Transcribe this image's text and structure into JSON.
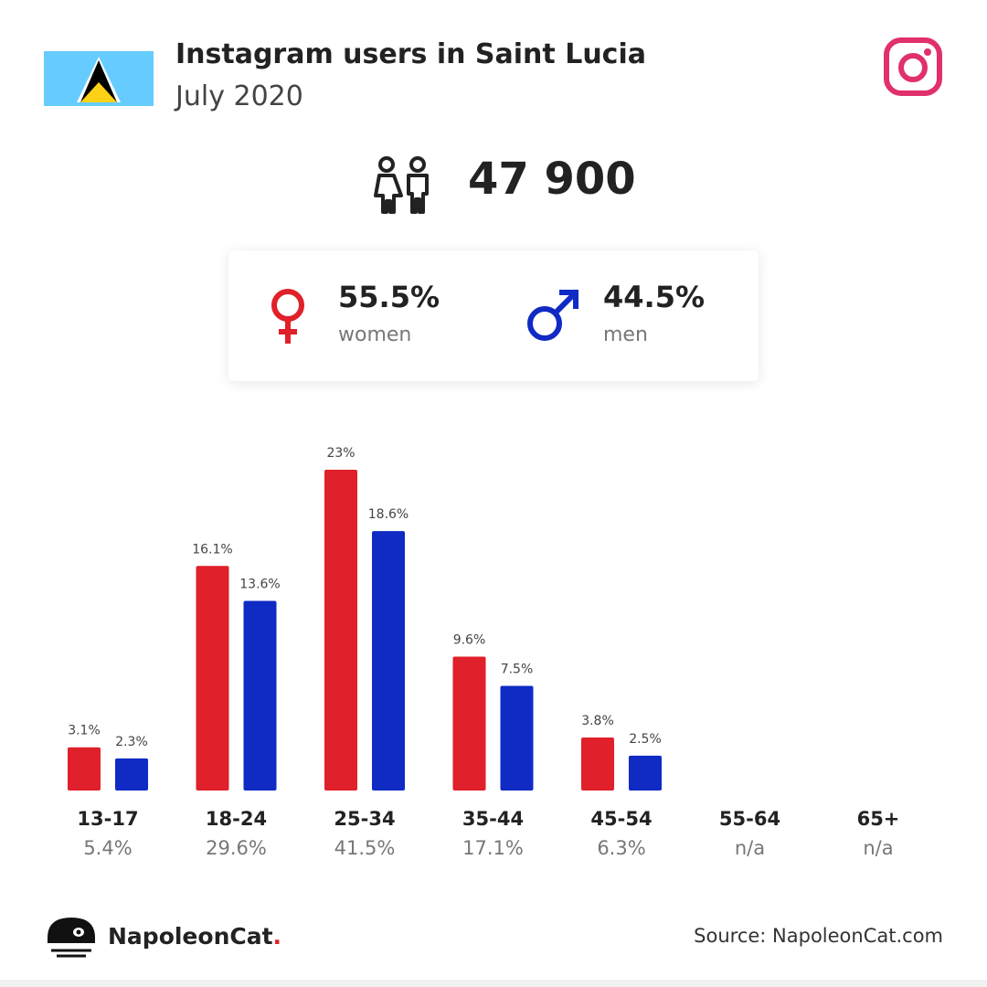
{
  "header": {
    "title": "Instagram users in Saint Lucia",
    "subtitle": "July 2020"
  },
  "summary": {
    "total_users": "47 900",
    "women": {
      "value": "55.5%",
      "label": "women"
    },
    "men": {
      "value": "44.5%",
      "label": "men"
    }
  },
  "colors": {
    "women": "#e0202a",
    "men": "#102ac4",
    "instagram": "#e1306c",
    "flag_blue": "#66ccff",
    "flag_yellow": "#fcd116"
  },
  "chart_data": {
    "type": "bar",
    "categories": [
      "13-17",
      "18-24",
      "25-34",
      "35-44",
      "45-54",
      "55-64",
      "65+"
    ],
    "category_totals": [
      "5.4%",
      "29.6%",
      "41.5%",
      "17.1%",
      "6.3%",
      "n/a",
      "n/a"
    ],
    "series": [
      {
        "name": "women",
        "values": [
          3.1,
          16.1,
          23,
          9.6,
          3.8,
          null,
          null
        ],
        "labels": [
          "3.1%",
          "16.1%",
          "23%",
          "9.6%",
          "3.8%",
          "",
          ""
        ]
      },
      {
        "name": "men",
        "values": [
          2.3,
          13.6,
          18.6,
          7.5,
          2.5,
          null,
          null
        ],
        "labels": [
          "2.3%",
          "13.6%",
          "18.6%",
          "7.5%",
          "2.5%",
          "",
          ""
        ]
      }
    ],
    "ylim": [
      0,
      23
    ],
    "grid": false,
    "legend": "none"
  },
  "footer": {
    "brand": "NapoleonCat",
    "brand_dot": ".",
    "source": "Source: NapoleonCat.com"
  },
  "icons": {
    "flag": "saint-lucia-flag-icon",
    "instagram": "instagram-icon",
    "people": "people-icon",
    "female": "female-symbol-icon",
    "male": "male-symbol-icon",
    "logo": "napoleoncat-logo-icon"
  }
}
